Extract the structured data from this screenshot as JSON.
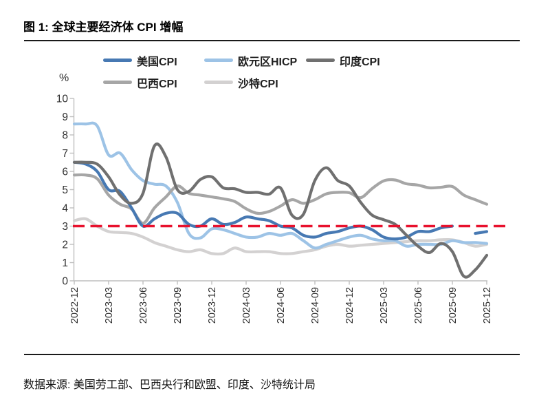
{
  "figure": {
    "title": "图 1: 全球主要经济体 CPI 增幅",
    "source": "数据来源: 美国劳工部、巴西央行和欧盟、印度、沙特统计局",
    "unit_label": "%"
  },
  "chart_data": {
    "type": "line",
    "title": "全球主要经济体 CPI 增幅",
    "xlabel": "",
    "ylabel": "%",
    "ylim": [
      0,
      10
    ],
    "y_ticks": [
      0,
      1,
      2,
      3,
      4,
      5,
      6,
      7,
      8,
      9,
      10
    ],
    "grid": false,
    "legend_position": "top",
    "x_tick_labels": [
      "2022-12",
      "2023-03",
      "2023-06",
      "2023-09",
      "2023-12",
      "2024-03",
      "2024-06",
      "2024-09",
      "2024-12",
      "2025-03",
      "2025-06",
      "2025-09",
      "2025-12"
    ],
    "x": [
      "2022-12",
      "2023-01",
      "2023-02",
      "2023-03",
      "2023-04",
      "2023-05",
      "2023-06",
      "2023-07",
      "2023-08",
      "2023-09",
      "2023-10",
      "2023-11",
      "2023-12",
      "2024-01",
      "2024-02",
      "2024-03",
      "2024-04",
      "2024-05",
      "2024-06",
      "2024-07",
      "2024-08",
      "2024-09",
      "2024-10",
      "2024-11",
      "2024-12",
      "2025-01",
      "2025-02",
      "2025-03",
      "2025-04",
      "2025-05",
      "2025-06",
      "2025-07",
      "2025-08",
      "2025-09",
      "2025-10",
      "2025-11",
      "2025-12"
    ],
    "reference_line": {
      "value": 3,
      "color": "#e8112d",
      "style": "dashed"
    },
    "series": [
      {
        "id": "us-cpi",
        "name": "美国CPI",
        "color": "#4779b3",
        "values": [
          6.5,
          6.4,
          6.0,
          5.0,
          4.9,
          4.0,
          3.0,
          3.4,
          3.7,
          3.7,
          3.1,
          3.0,
          3.4,
          3.1,
          3.2,
          3.5,
          3.4,
          3.3,
          3.0,
          2.9,
          2.5,
          2.4,
          2.6,
          2.7,
          2.9,
          3.0,
          2.8,
          2.4,
          2.3,
          2.4,
          2.7,
          2.7,
          2.9,
          3.0,
          null,
          2.6,
          2.7
        ]
      },
      {
        "id": "euro-hicp",
        "name": "欧元区HICP",
        "color": "#9dc3e6",
        "values": [
          8.6,
          8.6,
          8.5,
          6.9,
          7.0,
          6.1,
          5.5,
          5.3,
          5.2,
          4.3,
          2.6,
          2.35,
          2.85,
          2.8,
          2.6,
          2.4,
          2.4,
          2.6,
          2.5,
          2.6,
          2.2,
          1.8,
          2.0,
          2.2,
          2.4,
          2.5,
          2.3,
          2.2,
          2.2,
          1.9,
          2.0,
          2.0,
          2.0,
          2.2,
          2.1,
          2.1,
          2.05
        ]
      },
      {
        "id": "india-cpi",
        "name": "印度CPI",
        "color": "#707070",
        "values": [
          6.5,
          6.5,
          6.4,
          5.7,
          4.7,
          4.25,
          4.8,
          7.4,
          6.8,
          5.0,
          4.9,
          5.55,
          5.7,
          5.1,
          5.05,
          4.85,
          4.85,
          4.75,
          5.1,
          3.6,
          3.65,
          5.5,
          6.2,
          5.5,
          5.2,
          4.3,
          3.6,
          3.35,
          3.1,
          2.5,
          1.9,
          1.55,
          2.05,
          1.6,
          0.25,
          0.6,
          1.4
        ]
      },
      {
        "id": "brazil-cpi",
        "name": "巴西CPI",
        "color": "#a6a6a6",
        "values": [
          5.8,
          5.8,
          5.6,
          4.7,
          4.2,
          3.94,
          3.16,
          4.0,
          4.6,
          5.2,
          4.8,
          4.7,
          4.6,
          4.5,
          4.35,
          3.95,
          3.7,
          3.8,
          4.1,
          4.45,
          4.25,
          4.45,
          4.77,
          4.85,
          4.83,
          4.56,
          5.06,
          5.48,
          5.53,
          5.32,
          5.25,
          5.1,
          5.13,
          5.17,
          4.7,
          4.45,
          4.2
        ]
      },
      {
        "id": "saudi-cpi",
        "name": "沙特CPI",
        "color": "#d3d1d1",
        "values": [
          3.3,
          3.4,
          3.0,
          2.7,
          2.65,
          2.6,
          2.4,
          2.1,
          1.9,
          1.7,
          1.6,
          1.7,
          1.5,
          1.5,
          1.8,
          1.6,
          1.6,
          1.6,
          1.5,
          1.5,
          1.6,
          1.7,
          1.9,
          2.0,
          1.9,
          1.95,
          2.0,
          2.05,
          2.1,
          2.15,
          2.2,
          2.2,
          2.25,
          2.25,
          2.1,
          1.9,
          2.0
        ]
      }
    ],
    "legend_rows": [
      [
        "美国CPI",
        "欧元区HICP",
        "印度CPI"
      ],
      [
        "巴西CPI",
        "沙特CPI"
      ]
    ]
  }
}
